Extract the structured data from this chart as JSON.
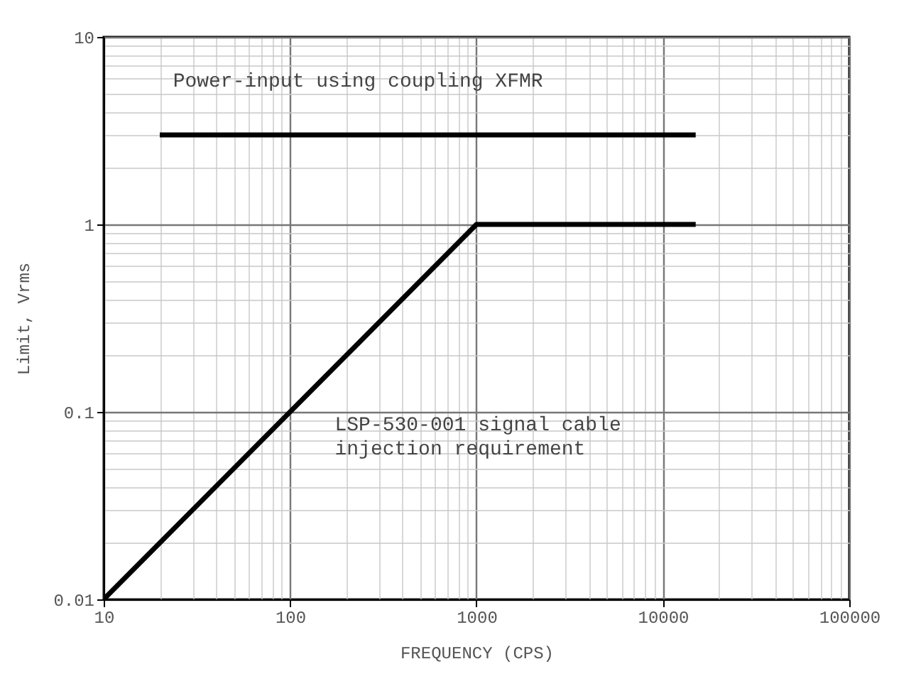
{
  "chart_data": {
    "type": "line",
    "xlabel": "FREQUENCY (CPS)",
    "ylabel": "Limit, Vrms",
    "log": "xy",
    "grid": true,
    "xlim": [
      10,
      100000
    ],
    "xticks": [
      10,
      100,
      1000,
      10000,
      100000
    ],
    "ylim": [
      0.01,
      10
    ],
    "yticks": [
      0.01,
      0.1,
      1,
      10
    ],
    "series": [
      {
        "color": "#000000",
        "x": [
          20,
          15000
        ],
        "values": [
          3,
          3
        ]
      },
      {
        "color": "#000000",
        "x": [
          10,
          1000,
          15000
        ],
        "values": [
          0.01,
          1,
          1
        ]
      }
    ],
    "annotations": [
      "Power-input using coupling XFMR",
      "LSP-530-001 signal cable\ninjection requirement"
    ]
  }
}
